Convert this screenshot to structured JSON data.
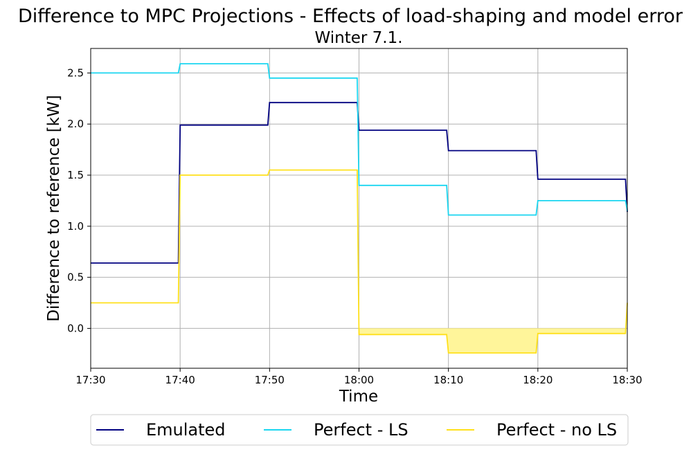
{
  "chart_data": {
    "type": "line",
    "title": "Difference to MPC Projections - Effects of load-shaping and model error",
    "subtitle": "Winter 7.1.",
    "xlabel": "Time",
    "ylabel": "Difference to reference [kW]",
    "x_ticks": [
      "17:30",
      "17:40",
      "17:50",
      "18:00",
      "18:10",
      "18:20",
      "18:30"
    ],
    "y_ticks": [
      "0.0",
      "0.5",
      "1.0",
      "1.5",
      "2.0",
      "2.5"
    ],
    "xlim_minutes": [
      0,
      60
    ],
    "ylim": [
      -0.39,
      2.74
    ],
    "grid": true,
    "legend": "bottom-center, horizontal",
    "series": [
      {
        "name": "Emulated",
        "color": "#000080",
        "points": [
          [
            0,
            0.64
          ],
          [
            9.8,
            0.64
          ],
          [
            10,
            1.99
          ],
          [
            19.8,
            1.99
          ],
          [
            20,
            2.21
          ],
          [
            29.8,
            2.21
          ],
          [
            30,
            1.94
          ],
          [
            39.8,
            1.94
          ],
          [
            40,
            1.74
          ],
          [
            49.8,
            1.74
          ],
          [
            50,
            1.46
          ],
          [
            59.8,
            1.46
          ],
          [
            60,
            1.14
          ]
        ]
      },
      {
        "name": "Perfect - LS",
        "color": "#1ad6f0",
        "points": [
          [
            0,
            2.5
          ],
          [
            9.8,
            2.5
          ],
          [
            10,
            2.59
          ],
          [
            19.8,
            2.59
          ],
          [
            20,
            2.45
          ],
          [
            29.8,
            2.45
          ],
          [
            30,
            1.4
          ],
          [
            39.8,
            1.4
          ],
          [
            40,
            1.11
          ],
          [
            49.8,
            1.11
          ],
          [
            50,
            1.25
          ],
          [
            59.8,
            1.25
          ],
          [
            60,
            1.15
          ]
        ]
      },
      {
        "name": "Perfect - no LS",
        "color": "#ffe01a",
        "points": [
          [
            0,
            0.25
          ],
          [
            9.8,
            0.25
          ],
          [
            10,
            1.5
          ],
          [
            19.8,
            1.5
          ],
          [
            20,
            1.55
          ],
          [
            29.8,
            1.55
          ],
          [
            30,
            -0.06
          ],
          [
            39.8,
            -0.06
          ],
          [
            40,
            -0.24
          ],
          [
            49.8,
            -0.24
          ],
          [
            50,
            -0.05
          ],
          [
            59.8,
            -0.05
          ],
          [
            60,
            0.25
          ]
        ]
      }
    ],
    "fill": {
      "between": "Perfect - no LS and 0",
      "x_range_minutes": [
        30,
        60
      ],
      "color": "#fff59a"
    }
  }
}
